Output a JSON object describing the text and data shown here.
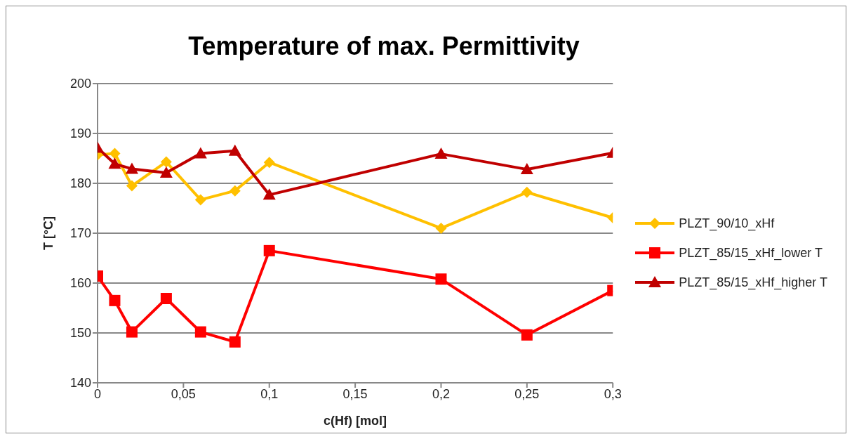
{
  "chart_data": {
    "type": "line",
    "title": "Temperature of max. Permittivity",
    "xlabel": "c(Hf) [mol]",
    "ylabel": "T [°C]",
    "x": [
      0,
      0.01,
      0.02,
      0.04,
      0.06,
      0.08,
      0.1,
      0.2,
      0.25,
      0.3
    ],
    "series": [
      {
        "name": "PLZT_90/10_xHf",
        "color": "#ffc000",
        "marker": "diamond",
        "values": [
          185.7,
          186.0,
          179.5,
          184.3,
          176.7,
          178.5,
          184.2,
          171.0,
          178.2,
          173.1
        ]
      },
      {
        "name": "PLZT_85/15_xHf_lower T",
        "color": "#ff0000",
        "marker": "square",
        "values": [
          161.4,
          156.5,
          150.2,
          156.9,
          150.2,
          148.2,
          166.5,
          160.8,
          149.6,
          158.5
        ]
      },
      {
        "name": "PLZT_85/15_xHf_higher T",
        "color": "#c00000",
        "marker": "triangle",
        "values": [
          187.1,
          183.9,
          182.9,
          182.1,
          186.0,
          186.5,
          177.7,
          185.9,
          182.8,
          186.1
        ]
      }
    ],
    "xlim": [
      0,
      0.3
    ],
    "xticks": [
      0,
      {
        "value": 0.05,
        "label": "0,05"
      },
      {
        "value": 0.1,
        "label": "0,1"
      },
      {
        "value": 0.15,
        "label": "0,15"
      },
      {
        "value": 0.2,
        "label": "0,2"
      },
      {
        "value": 0.25,
        "label": "0,25"
      },
      {
        "value": 0.3,
        "label": "0,3"
      }
    ],
    "ylim": [
      140,
      200
    ],
    "yticks": [
      140,
      150,
      160,
      170,
      180,
      190,
      200
    ],
    "grid": "y",
    "legend": "right",
    "line_style": "solid"
  }
}
